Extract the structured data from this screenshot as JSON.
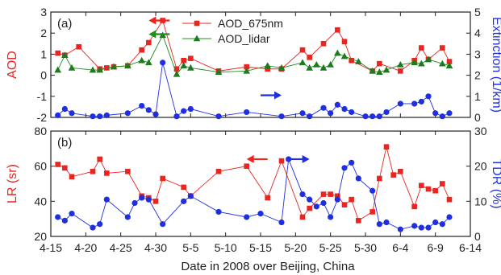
{
  "colors": {
    "red": "#e8251f",
    "green": "#1a8f1a",
    "blue": "#1f2fe0",
    "frame": "#222222",
    "greenMarker": "#1d7a1d"
  },
  "xaxis": {
    "label": "Date in 2008 over Beijing, China",
    "range": [
      "2008-04-15",
      "2008-06-14"
    ],
    "ticks": [
      {
        "date": "2008-04-15",
        "label": "4-15"
      },
      {
        "date": "2008-04-20",
        "label": "4-20"
      },
      {
        "date": "2008-04-25",
        "label": "4-25"
      },
      {
        "date": "2008-04-30",
        "label": "4-30"
      },
      {
        "date": "2008-05-05",
        "label": "5-5"
      },
      {
        "date": "2008-05-10",
        "label": "5-10"
      },
      {
        "date": "2008-05-15",
        "label": "5-15"
      },
      {
        "date": "2008-05-20",
        "label": "5-20"
      },
      {
        "date": "2008-05-25",
        "label": "5-25"
      },
      {
        "date": "2008-05-30",
        "label": "5-30"
      },
      {
        "date": "2008-06-04",
        "label": "6-4"
      },
      {
        "date": "2008-06-09",
        "label": "6-9"
      },
      {
        "date": "2008-06-14",
        "label": "6-14"
      }
    ]
  },
  "chart_data": [
    {
      "type": "line",
      "panel_label": "(a)",
      "ylabel_left": "AOD",
      "ylabel_right": "Extinction (1/km)",
      "ylim_left": [
        -2,
        3
      ],
      "ylim_right": [
        0,
        5
      ],
      "yticks_left": [
        -2,
        -1,
        0,
        1,
        2,
        3
      ],
      "yticks_right": [
        0,
        1,
        2,
        3,
        4,
        5
      ],
      "legend": "top-center",
      "series": [
        {
          "name": "AOD_675nm",
          "axis": "left",
          "color": "red",
          "marker": "square",
          "points": [
            [
              "2008-04-16",
              1.05
            ],
            [
              "2008-04-17",
              0.95
            ],
            [
              "2008-04-19",
              1.35
            ],
            [
              "2008-04-22",
              0.3
            ],
            [
              "2008-04-23",
              0.35
            ],
            [
              "2008-04-24",
              0.4
            ],
            [
              "2008-04-26",
              0.45
            ],
            [
              "2008-04-28",
              1.2
            ],
            [
              "2008-04-29",
              1.55
            ],
            [
              "2008-05-01",
              2.6
            ],
            [
              "2008-05-03",
              0.3
            ],
            [
              "2008-05-04",
              0.7
            ],
            [
              "2008-05-05",
              0.8
            ],
            [
              "2008-05-09",
              0.2
            ],
            [
              "2008-05-13",
              0.4
            ],
            [
              "2008-05-16",
              0.3
            ],
            [
              "2008-05-18",
              0.3
            ],
            [
              "2008-05-21",
              1.2
            ],
            [
              "2008-05-22",
              0.85
            ],
            [
              "2008-05-24",
              1.5
            ],
            [
              "2008-05-26",
              2.15
            ],
            [
              "2008-05-27",
              1.6
            ],
            [
              "2008-05-28",
              0.7
            ],
            [
              "2008-05-31",
              0.2
            ],
            [
              "2008-06-01",
              0.55
            ],
            [
              "2008-06-04",
              0.2
            ],
            [
              "2008-06-06",
              0.7
            ],
            [
              "2008-06-07",
              1.3
            ],
            [
              "2008-06-08",
              0.75
            ],
            [
              "2008-06-10",
              1.3
            ],
            [
              "2008-06-11",
              0.65
            ]
          ]
        },
        {
          "name": "AOD_lidar",
          "axis": "left",
          "color": "green",
          "marker": "triangle",
          "points": [
            [
              "2008-04-16",
              0.25
            ],
            [
              "2008-04-17",
              0.95
            ],
            [
              "2008-04-18",
              0.35
            ],
            [
              "2008-04-21",
              0.25
            ],
            [
              "2008-04-22",
              0.25
            ],
            [
              "2008-04-24",
              0.4
            ],
            [
              "2008-04-26",
              0.45
            ],
            [
              "2008-04-28",
              0.7
            ],
            [
              "2008-04-29",
              0.6
            ],
            [
              "2008-05-01",
              1.9
            ],
            [
              "2008-05-03",
              0.05
            ],
            [
              "2008-05-04",
              0.45
            ],
            [
              "2008-05-05",
              0.35
            ],
            [
              "2008-05-09",
              0.15
            ],
            [
              "2008-05-13",
              0.2
            ],
            [
              "2008-05-16",
              0.45
            ],
            [
              "2008-05-18",
              0.35
            ],
            [
              "2008-05-21",
              0.6
            ],
            [
              "2008-05-22",
              0.35
            ],
            [
              "2008-05-23",
              0.5
            ],
            [
              "2008-05-24",
              0.35
            ],
            [
              "2008-05-25",
              0.5
            ],
            [
              "2008-05-26",
              1.05
            ],
            [
              "2008-05-27",
              0.9
            ],
            [
              "2008-05-29",
              0.65
            ],
            [
              "2008-05-31",
              0.2
            ],
            [
              "2008-06-01",
              0.15
            ],
            [
              "2008-06-02",
              0.25
            ],
            [
              "2008-06-04",
              0.5
            ],
            [
              "2008-06-06",
              0.6
            ],
            [
              "2008-06-07",
              0.55
            ],
            [
              "2008-06-08",
              0.75
            ],
            [
              "2008-06-10",
              0.55
            ],
            [
              "2008-06-11",
              0.45
            ]
          ]
        },
        {
          "name": "Extinction",
          "axis": "right",
          "color": "blue",
          "marker": "circle",
          "points": [
            [
              "2008-04-16",
              0.1
            ],
            [
              "2008-04-17",
              0.4
            ],
            [
              "2008-04-18",
              0.2
            ],
            [
              "2008-04-21",
              0.05
            ],
            [
              "2008-04-22",
              0.05
            ],
            [
              "2008-04-23",
              0.1
            ],
            [
              "2008-04-26",
              0.2
            ],
            [
              "2008-04-28",
              0.55
            ],
            [
              "2008-04-29",
              0.35
            ],
            [
              "2008-04-30",
              0.15
            ],
            [
              "2008-05-01",
              2.6
            ],
            [
              "2008-05-03",
              0.05
            ],
            [
              "2008-05-04",
              0.3
            ],
            [
              "2008-05-05",
              0.4
            ],
            [
              "2008-05-09",
              0.05
            ],
            [
              "2008-05-13",
              0.25
            ],
            [
              "2008-05-18",
              0.05
            ],
            [
              "2008-05-21",
              0.2
            ],
            [
              "2008-05-22",
              0.05
            ],
            [
              "2008-05-24",
              0.45
            ],
            [
              "2008-05-25",
              0.2
            ],
            [
              "2008-05-26",
              0.6
            ],
            [
              "2008-05-27",
              0.4
            ],
            [
              "2008-05-28",
              0.25
            ],
            [
              "2008-05-30",
              0.05
            ],
            [
              "2008-05-31",
              0.05
            ],
            [
              "2008-06-01",
              0.05
            ],
            [
              "2008-06-02",
              0.25
            ],
            [
              "2008-06-04",
              0.65
            ],
            [
              "2008-06-06",
              0.65
            ],
            [
              "2008-06-07",
              0.75
            ],
            [
              "2008-06-08",
              1.0
            ],
            [
              "2008-06-09",
              0.2
            ],
            [
              "2008-06-10",
              0.05
            ],
            [
              "2008-06-11",
              0.2
            ]
          ]
        }
      ],
      "arrows": [
        {
          "color": "red",
          "direction": "left",
          "x_from": "2008-04-29",
          "x_to": "2008-05-02",
          "value": 2.6,
          "axis": "left"
        },
        {
          "color": "green",
          "direction": "left",
          "x_from": "2008-04-29",
          "x_to": "2008-05-02",
          "value": 1.95,
          "axis": "left"
        },
        {
          "color": "blue",
          "direction": "right",
          "x_from": "2008-05-15",
          "x_to": "2008-05-18",
          "value": 1.05,
          "axis": "right"
        }
      ]
    },
    {
      "type": "line",
      "panel_label": "(b)",
      "ylabel_left": "LR (sr)",
      "ylabel_right": "TDR (%)",
      "ylim_left": [
        20,
        80
      ],
      "ylim_right": [
        0,
        30
      ],
      "yticks_left": [
        20,
        40,
        60,
        80
      ],
      "yticks_right": [
        0,
        10,
        20,
        30
      ],
      "series": [
        {
          "name": "LR",
          "axis": "left",
          "color": "red",
          "marker": "square",
          "points": [
            [
              "2008-04-16",
              61
            ],
            [
              "2008-04-17",
              59
            ],
            [
              "2008-04-18",
              54
            ],
            [
              "2008-04-21",
              57
            ],
            [
              "2008-04-22",
              64
            ],
            [
              "2008-04-23",
              56
            ],
            [
              "2008-04-26",
              57
            ],
            [
              "2008-04-28",
              43
            ],
            [
              "2008-04-29",
              42
            ],
            [
              "2008-04-30",
              40
            ],
            [
              "2008-05-01",
              53
            ],
            [
              "2008-05-04",
              48
            ],
            [
              "2008-05-05",
              43
            ],
            [
              "2008-05-09",
              57
            ],
            [
              "2008-05-13",
              60
            ],
            [
              "2008-05-16",
              42
            ],
            [
              "2008-05-18",
              63
            ],
            [
              "2008-05-21",
              31
            ],
            [
              "2008-05-22",
              36
            ],
            [
              "2008-05-24",
              44
            ],
            [
              "2008-05-25",
              44
            ],
            [
              "2008-05-26",
              43
            ],
            [
              "2008-05-27",
              38
            ],
            [
              "2008-05-28",
              41
            ],
            [
              "2008-05-29",
              29
            ],
            [
              "2008-05-31",
              34
            ],
            [
              "2008-06-01",
              53
            ],
            [
              "2008-06-02",
              71
            ],
            [
              "2008-06-03",
              55
            ],
            [
              "2008-06-04",
              57
            ],
            [
              "2008-06-06",
              37
            ],
            [
              "2008-06-07",
              49
            ],
            [
              "2008-06-08",
              47
            ],
            [
              "2008-06-09",
              46
            ],
            [
              "2008-06-10",
              50
            ],
            [
              "2008-06-11",
              41
            ]
          ]
        },
        {
          "name": "TDR",
          "axis": "right",
          "color": "blue",
          "marker": "circle",
          "points": [
            [
              "2008-04-16",
              5.5
            ],
            [
              "2008-04-17",
              4.5
            ],
            [
              "2008-04-18",
              6.5
            ],
            [
              "2008-04-21",
              2.5
            ],
            [
              "2008-04-22",
              3.5
            ],
            [
              "2008-04-23",
              10.5
            ],
            [
              "2008-04-26",
              5.5
            ],
            [
              "2008-04-27",
              9.5
            ],
            [
              "2008-04-28",
              11
            ],
            [
              "2008-04-29",
              10.5
            ],
            [
              "2008-05-01",
              3.5
            ],
            [
              "2008-05-04",
              10
            ],
            [
              "2008-05-05",
              11.5
            ],
            [
              "2008-05-09",
              7
            ],
            [
              "2008-05-13",
              5.5
            ],
            [
              "2008-05-15",
              6.5
            ],
            [
              "2008-05-18",
              4
            ],
            [
              "2008-05-19",
              22
            ],
            [
              "2008-05-21",
              12
            ],
            [
              "2008-05-22",
              10.5
            ],
            [
              "2008-05-23",
              8.5
            ],
            [
              "2008-05-24",
              9.5
            ],
            [
              "2008-05-25",
              5.5
            ],
            [
              "2008-05-26",
              10.5
            ],
            [
              "2008-05-27",
              19.5
            ],
            [
              "2008-05-28",
              21
            ],
            [
              "2008-05-29",
              16.5
            ],
            [
              "2008-05-31",
              13
            ],
            [
              "2008-06-01",
              3.5
            ],
            [
              "2008-06-02",
              4
            ],
            [
              "2008-06-04",
              2
            ],
            [
              "2008-06-06",
              3
            ],
            [
              "2008-06-07",
              2.5
            ],
            [
              "2008-06-08",
              2.5
            ],
            [
              "2008-06-09",
              4
            ],
            [
              "2008-06-10",
              3.5
            ],
            [
              "2008-06-11",
              5.5
            ]
          ]
        }
      ],
      "arrows": [
        {
          "color": "red",
          "direction": "left",
          "x_from": "2008-05-13",
          "x_to": "2008-05-16",
          "value": 64,
          "axis": "left"
        },
        {
          "color": "blue",
          "direction": "right",
          "x_from": "2008-05-19",
          "x_to": "2008-05-22",
          "value": 64,
          "axis": "left"
        }
      ]
    }
  ]
}
